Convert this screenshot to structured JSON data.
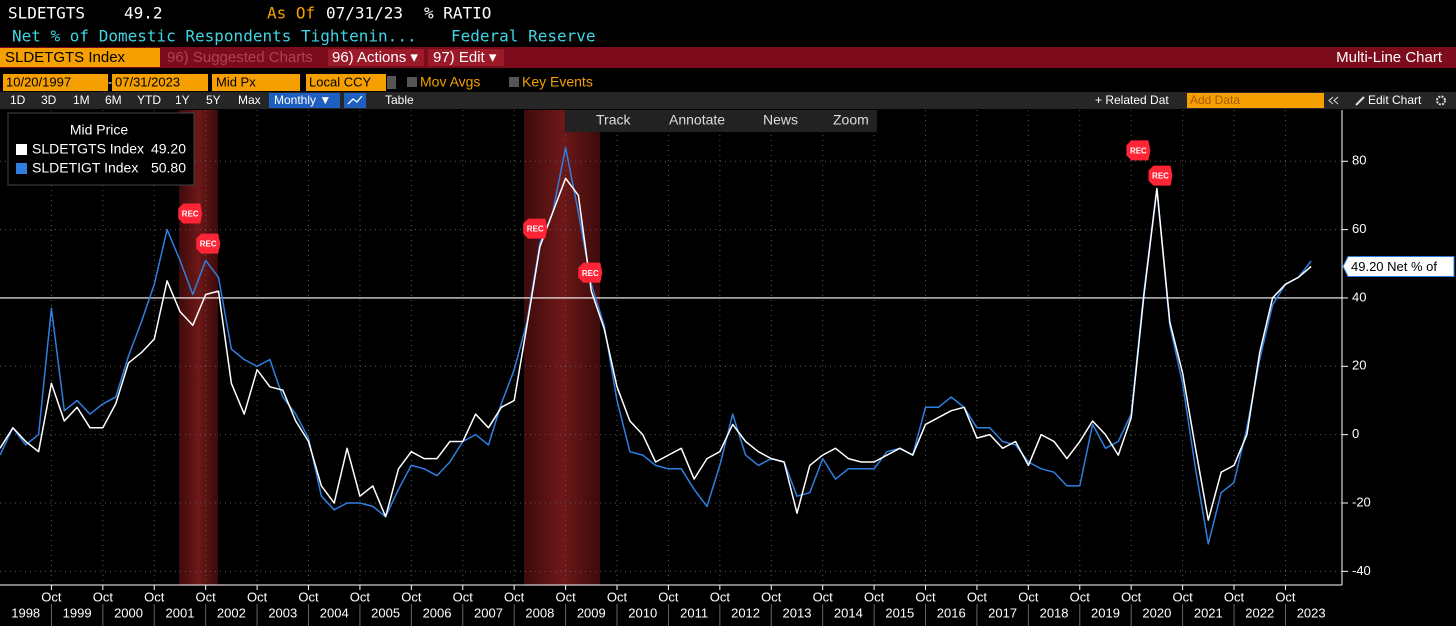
{
  "header": {
    "ticker": "SLDETGTS",
    "last": "49.2",
    "as_of_label": "As Of",
    "as_of": "07/31/23",
    "units": "% RATIO",
    "description": "Net % of Domestic Respondents Tightenin...",
    "source": "Federal Reserve"
  },
  "menu_bar": {
    "security": "SLDETGTS Index",
    "items": [
      "96) Suggested Charts",
      "96) Actions ▾",
      "97) Edit ▾"
    ],
    "chart_type": "Multi-Line Chart"
  },
  "settings_bar": {
    "start": "10/20/1997",
    "dash": "-",
    "end": "07/31/2023",
    "price": "Mid Px",
    "currency": "Local CCY",
    "options": [
      "Mov Avgs",
      "Key Events"
    ]
  },
  "period_bar": {
    "periods": [
      "1D",
      "3D",
      "1M",
      "6M",
      "YTD",
      "1Y",
      "5Y",
      "Max"
    ],
    "frequency": "Monthly ▼",
    "table": "Table",
    "related": "+ Related Dat",
    "add_data": "Add Data",
    "edit_chart": "Edit Chart"
  },
  "chart_tools": [
    "Track",
    "Annotate",
    "News",
    "Zoom"
  ],
  "chart_data": {
    "type": "line",
    "legend_title": "Mid Price",
    "x": [
      1997.75,
      1998,
      1998.25,
      1998.5,
      1998.75,
      1999,
      1999.25,
      1999.5,
      1999.75,
      2000,
      2000.25,
      2000.5,
      2000.75,
      2001,
      2001.25,
      2001.5,
      2001.75,
      2002,
      2002.25,
      2002.5,
      2002.75,
      2003,
      2003.25,
      2003.5,
      2003.75,
      2004,
      2004.25,
      2004.5,
      2004.75,
      2005,
      2005.25,
      2005.5,
      2005.75,
      2006,
      2006.25,
      2006.5,
      2006.75,
      2007,
      2007.25,
      2007.5,
      2007.75,
      2008,
      2008.25,
      2008.5,
      2008.75,
      2009,
      2009.25,
      2009.5,
      2009.75,
      2010,
      2010.25,
      2010.5,
      2010.75,
      2011,
      2011.25,
      2011.5,
      2011.75,
      2012,
      2012.25,
      2012.5,
      2012.75,
      2013,
      2013.25,
      2013.5,
      2013.75,
      2014,
      2014.25,
      2014.5,
      2014.75,
      2015,
      2015.25,
      2015.5,
      2015.75,
      2016,
      2016.25,
      2016.5,
      2016.75,
      2017,
      2017.25,
      2017.5,
      2017.75,
      2018,
      2018.25,
      2018.5,
      2018.75,
      2019,
      2019.25,
      2019.5,
      2019.75,
      2020,
      2020.25,
      2020.5,
      2020.75,
      2021,
      2021.25,
      2021.5,
      2021.75,
      2022,
      2022.25,
      2022.5,
      2022.75,
      2023,
      2023.25
    ],
    "series": [
      {
        "name": "SLDETGTS Index",
        "color": "#ffffff",
        "last_label": "49.20",
        "values": [
          -4,
          2,
          -2,
          -5,
          15,
          4,
          8,
          2,
          2,
          9,
          21,
          24,
          28,
          45,
          36,
          32,
          41,
          42,
          15,
          6,
          19,
          14,
          13,
          4,
          -2,
          -15,
          -20,
          -4,
          -18,
          -15,
          -24,
          -10,
          -5,
          -7,
          -7,
          -2,
          -2,
          6,
          2,
          8,
          10,
          32,
          55,
          65,
          75,
          70,
          42,
          31,
          14,
          4,
          0,
          -8,
          -6,
          -4,
          -13,
          -7,
          -5,
          3,
          -2,
          -5,
          -7,
          -8,
          -23,
          -9,
          -6,
          -4,
          -7,
          -8,
          -8,
          -6,
          -4,
          -6,
          3,
          5,
          7,
          8,
          -1,
          0,
          -4,
          -2,
          -9,
          0,
          -2,
          -7,
          -2,
          4,
          0,
          -6,
          5,
          41,
          72,
          33,
          18,
          -4,
          -25,
          -11,
          -9,
          0,
          24,
          40,
          44,
          46,
          49.2
        ]
      },
      {
        "name": "SLDETIGT Index",
        "color": "#2f7fe0",
        "last_label": "50.80",
        "values": [
          -6,
          2,
          -3,
          0,
          37,
          7,
          10,
          6,
          9,
          11,
          23,
          33,
          44,
          60,
          51,
          41,
          51,
          46,
          25,
          22,
          20,
          22,
          11,
          6,
          -1,
          -18,
          -22,
          -20,
          -20,
          -21,
          -24,
          -16,
          -9,
          -10,
          -12,
          -8,
          -2,
          0,
          -3,
          9,
          19,
          33,
          56,
          65,
          84,
          65,
          44,
          32,
          10,
          -5,
          -6,
          -9,
          -10,
          -10,
          -16,
          -21,
          -9,
          6,
          -6,
          -9,
          -7,
          -8,
          -18,
          -17,
          -7,
          -13,
          -10,
          -10,
          -10,
          -5,
          -4,
          -6,
          8,
          8,
          11,
          8,
          2,
          2,
          -2,
          -3,
          -8,
          -10,
          -11,
          -15,
          -15,
          3,
          -4,
          -2,
          6,
          42,
          72,
          32,
          15,
          -10,
          -32,
          -17,
          -14,
          2,
          22,
          38,
          44,
          46,
          50.8
        ]
      }
    ],
    "xlim": [
      1997.75,
      2023.85
    ],
    "ylim": [
      -44,
      95
    ],
    "yticks": [
      -40,
      -20,
      0,
      20,
      40,
      60,
      80
    ],
    "xticks": [
      {
        "value": 1998.75,
        "label": "Oct"
      },
      {
        "value": 1999.75,
        "label": "Oct"
      },
      {
        "value": 2000.75,
        "label": "Oct"
      },
      {
        "value": 2001.75,
        "label": "Oct"
      },
      {
        "value": 2002.75,
        "label": "Oct"
      },
      {
        "value": 2003.75,
        "label": "Oct"
      },
      {
        "value": 2004.75,
        "label": "Oct"
      },
      {
        "value": 2005.75,
        "label": "Oct"
      },
      {
        "value": 2006.75,
        "label": "Oct"
      },
      {
        "value": 2007.75,
        "label": "Oct"
      },
      {
        "value": 2008.75,
        "label": "Oct"
      },
      {
        "value": 2009.75,
        "label": "Oct"
      },
      {
        "value": 2010.75,
        "label": "Oct"
      },
      {
        "value": 2011.75,
        "label": "Oct"
      },
      {
        "value": 2012.75,
        "label": "Oct"
      },
      {
        "value": 2013.75,
        "label": "Oct"
      },
      {
        "value": 2014.75,
        "label": "Oct"
      },
      {
        "value": 2015.75,
        "label": "Oct"
      },
      {
        "value": 2016.75,
        "label": "Oct"
      },
      {
        "value": 2017.75,
        "label": "Oct"
      },
      {
        "value": 2018.75,
        "label": "Oct"
      },
      {
        "value": 2019.75,
        "label": "Oct"
      },
      {
        "value": 2020.75,
        "label": "Oct"
      },
      {
        "value": 2021.75,
        "label": "Oct"
      },
      {
        "value": 2022.75,
        "label": "Oct"
      }
    ],
    "year_labels": [
      "1998",
      "1999",
      "2000",
      "2001",
      "2002",
      "2003",
      "2004",
      "2005",
      "2006",
      "2007",
      "2008",
      "2009",
      "2010",
      "2011",
      "2012",
      "2013",
      "2014",
      "2015",
      "2016",
      "2017",
      "2018",
      "2019",
      "2020",
      "2021",
      "2022",
      "2023"
    ],
    "grid": true,
    "hline": 40,
    "recessions": [
      [
        2001.23,
        2001.99
      ],
      [
        2007.94,
        2009.42
      ]
    ],
    "annotations": [
      {
        "text": "REC",
        "x": 2001.45,
        "y": 64.7
      },
      {
        "text": "REC",
        "x": 2001.8,
        "y": 55.9
      },
      {
        "text": "REC",
        "x": 2008.16,
        "y": 60.3
      },
      {
        "text": "REC",
        "x": 2009.23,
        "y": 47.4
      },
      {
        "text": "REC",
        "x": 2019.89,
        "y": 83.2
      },
      {
        "text": "REC",
        "x": 2020.32,
        "y": 75.8
      }
    ],
    "tag": {
      "value": 49.2,
      "label": "49.20 Net % of"
    }
  }
}
